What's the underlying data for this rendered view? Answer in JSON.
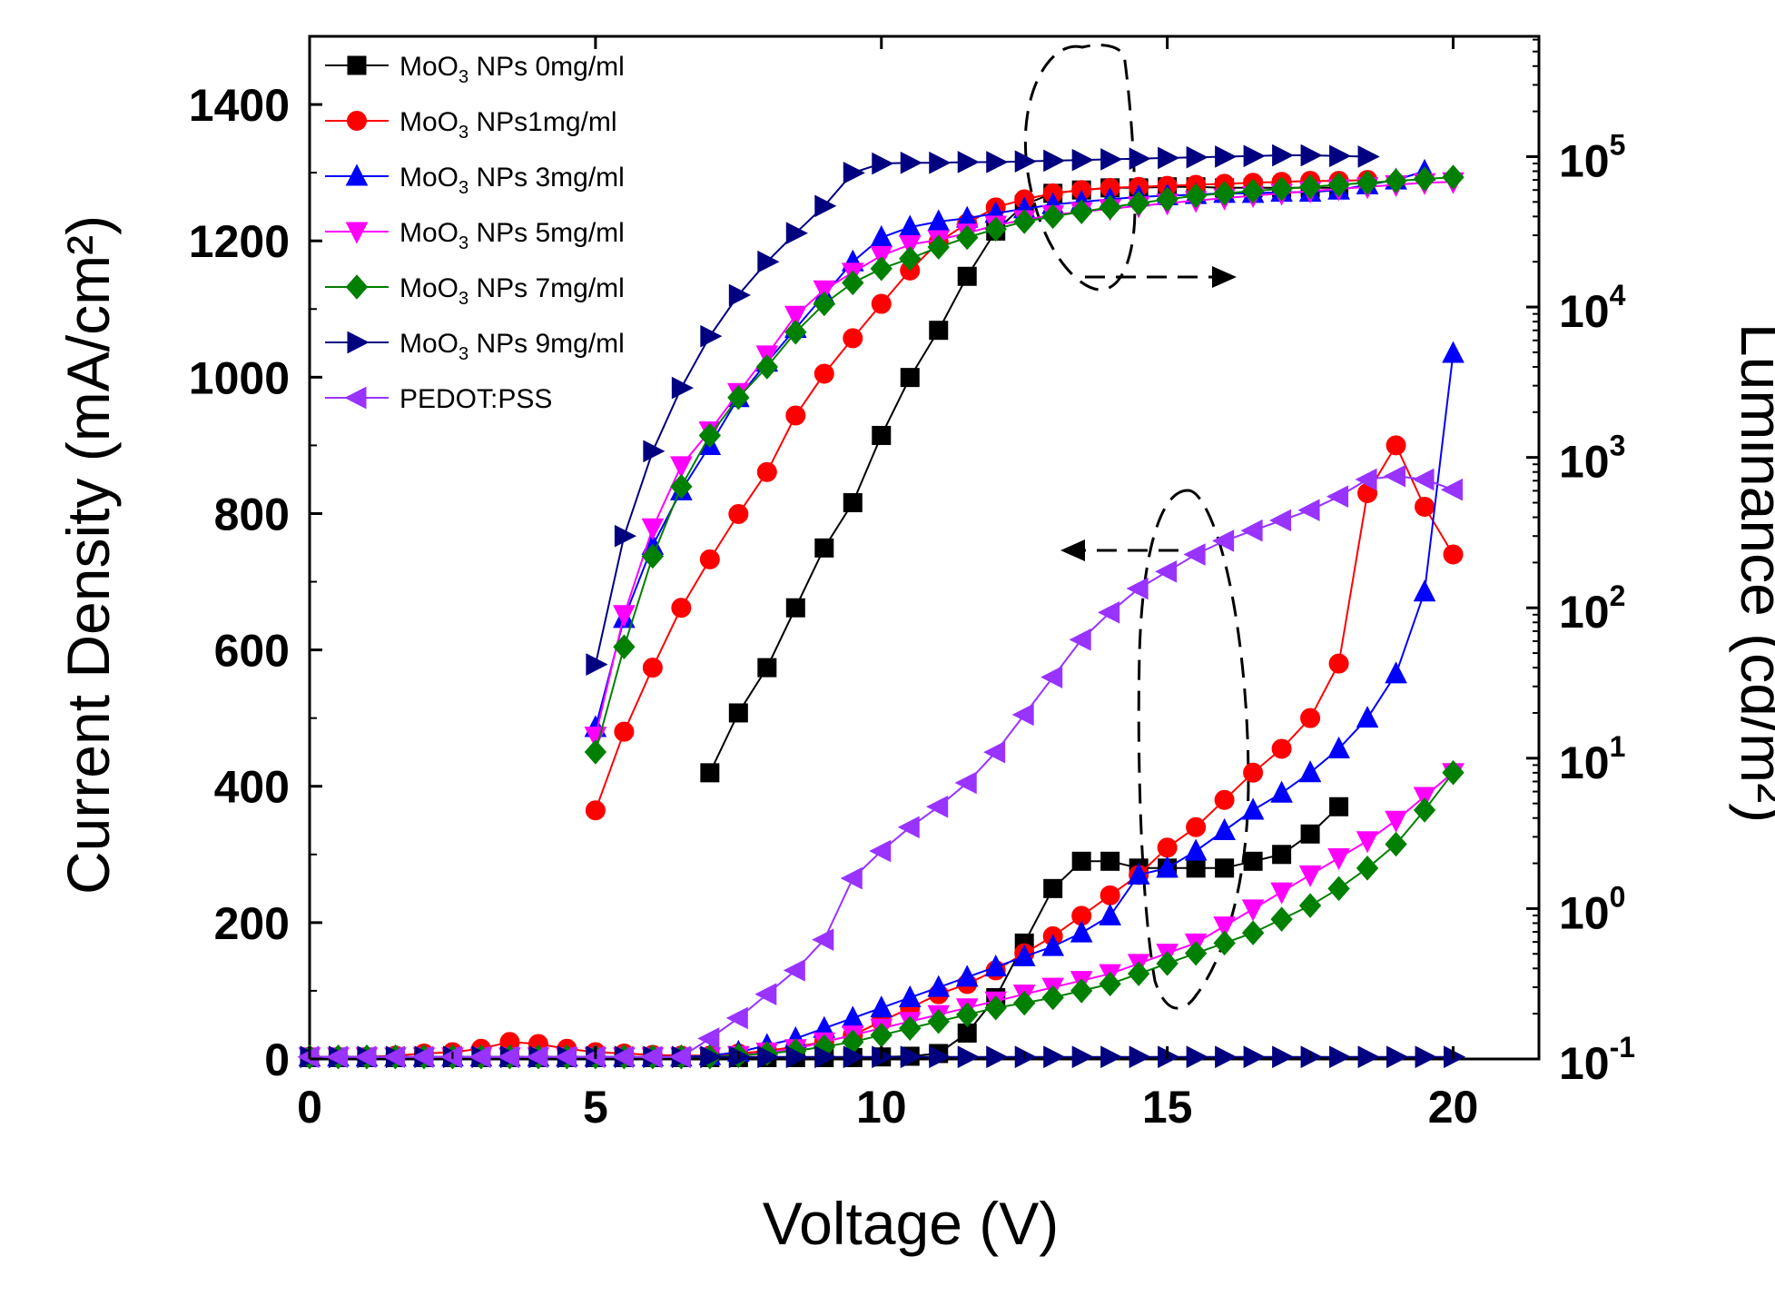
{
  "chart_data": {
    "type": "line",
    "title": "",
    "xlabel": "Voltage (V)",
    "ylabel_left": "Current Density (mA/cm²)",
    "ylabel_right": "Luminance (cd/m²)",
    "xlim": [
      0,
      21.5
    ],
    "ylim_left": [
      0,
      1500
    ],
    "ylim_right_log10": [
      -1,
      5.8
    ],
    "x_ticks": [
      "0",
      "5",
      "10",
      "15",
      "20"
    ],
    "y_left_ticks": [
      "0",
      "200",
      "400",
      "600",
      "800",
      "1000",
      "1200",
      "1400"
    ],
    "y_right_ticks": [
      {
        "base": "10",
        "exp": "-1"
      },
      {
        "base": "10",
        "exp": "0"
      },
      {
        "base": "10",
        "exp": "1"
      },
      {
        "base": "10",
        "exp": "2"
      },
      {
        "base": "10",
        "exp": "3"
      },
      {
        "base": "10",
        "exp": "4"
      },
      {
        "base": "10",
        "exp": "5"
      }
    ],
    "legend_position": "top-left",
    "annotations": [
      {
        "description": "dashed ellipse around upper curves with dashed arrow pointing right to luminance axis"
      },
      {
        "description": "dashed ellipse around lower curves with dashed arrow pointing left to current density axis"
      }
    ],
    "series": [
      {
        "name": "MoO3 NPs 0mg/ml",
        "legend": {
          "pre": "MoO",
          "sub": "3",
          "post": " NPs 0mg/ml"
        },
        "color": "#000000",
        "marker": "square",
        "current_density": {
          "x": [
            0,
            0.5,
            1,
            1.5,
            2,
            2.5,
            3,
            3.5,
            4,
            4.5,
            5,
            5.5,
            6,
            6.5,
            7,
            7.5,
            8,
            8.5,
            9,
            9.5,
            10,
            10.5,
            11,
            11.5,
            12,
            12.5,
            13,
            13.5,
            14,
            14.5,
            15,
            15.5,
            16,
            16.5,
            17,
            17.5,
            18
          ],
          "y": [
            2,
            2,
            2,
            2,
            2,
            2,
            2,
            2,
            2,
            2,
            2,
            2,
            2,
            2,
            2,
            2,
            2,
            2,
            2,
            2,
            3,
            4,
            8,
            38,
            90,
            170,
            250,
            290,
            290,
            280,
            280,
            280,
            280,
            290,
            300,
            330,
            370
          ]
        },
        "luminance": {
          "x": [
            7,
            7.5,
            8,
            8.5,
            9,
            9.5,
            10,
            10.5,
            11,
            11.5,
            12,
            12.5,
            13,
            13.5,
            14,
            14.5,
            15,
            15.5,
            16,
            16.5,
            17,
            17.5,
            18
          ],
          "y": [
            8,
            20,
            40,
            100,
            250,
            500,
            1400,
            3400,
            7000,
            16000,
            32000,
            48000,
            57000,
            60000,
            62000,
            62000,
            63000,
            63000,
            62000,
            62000,
            62000,
            62000,
            62000
          ]
        }
      },
      {
        "name": "MoO3 NPs1mg/ml",
        "legend": {
          "pre": "MoO",
          "sub": "3",
          "post": " NPs1mg/ml"
        },
        "color": "#ff0000",
        "marker": "circle",
        "current_density": {
          "x": [
            0,
            0.5,
            1,
            1.5,
            2,
            2.5,
            3,
            3.5,
            4,
            4.5,
            5,
            5.5,
            6,
            6.5,
            7,
            7.5,
            8,
            8.5,
            9,
            9.5,
            10,
            10.5,
            11,
            11.5,
            12,
            12.5,
            13,
            13.5,
            14,
            14.5,
            15,
            15.5,
            16,
            16.5,
            17,
            17.5,
            18,
            18.5,
            19,
            19.5,
            20
          ],
          "y": [
            3,
            3,
            3,
            5,
            8,
            10,
            15,
            25,
            22,
            15,
            10,
            8,
            6,
            5,
            5,
            8,
            12,
            18,
            25,
            35,
            55,
            75,
            95,
            110,
            130,
            155,
            180,
            210,
            240,
            270,
            310,
            340,
            380,
            420,
            455,
            500,
            580,
            830,
            900,
            810,
            740
          ]
        },
        "luminance": {
          "x": [
            5,
            5.5,
            6,
            6.5,
            7,
            7.5,
            8,
            8.5,
            9,
            9.5,
            10,
            10.5,
            11,
            11.5,
            12,
            12.5,
            13,
            13.5,
            14,
            14.5,
            15,
            15.5,
            16,
            16.5,
            17,
            17.5,
            18,
            18.5
          ],
          "y": [
            4.5,
            15,
            40,
            100,
            210,
            420,
            800,
            1900,
            3600,
            6200,
            10500,
            17500,
            27000,
            36000,
            46000,
            52000,
            57000,
            60000,
            62000,
            63000,
            64000,
            65000,
            66000,
            67000,
            68000,
            69000,
            69000,
            70000
          ]
        }
      },
      {
        "name": "MoO3 NPs 3mg/ml",
        "legend": {
          "pre": "MoO",
          "sub": "3",
          "post": " NPs 3mg/ml"
        },
        "color": "#0000ff",
        "marker": "triangle-up",
        "current_density": {
          "x": [
            0,
            0.5,
            1,
            1.5,
            2,
            2.5,
            3,
            3.5,
            4,
            4.5,
            5,
            5.5,
            6,
            6.5,
            7,
            7.5,
            8,
            8.5,
            9,
            9.5,
            10,
            10.5,
            11,
            11.5,
            12,
            12.5,
            13,
            13.5,
            14,
            14.5,
            15,
            15.5,
            16,
            16.5,
            17,
            17.5,
            18,
            18.5,
            19,
            19.5,
            20
          ],
          "y": [
            3,
            3,
            3,
            3,
            3,
            3,
            3,
            3,
            3,
            3,
            3,
            3,
            3,
            3,
            5,
            10,
            20,
            30,
            45,
            60,
            75,
            90,
            105,
            120,
            135,
            150,
            165,
            185,
            210,
            270,
            280,
            305,
            335,
            365,
            390,
            420,
            455,
            500,
            565,
            685,
            1035
          ]
        },
        "luminance": {
          "x": [
            5,
            5.5,
            6,
            6.5,
            7,
            7.5,
            8,
            8.5,
            9,
            9.5,
            10,
            10.5,
            11,
            11.5,
            12,
            12.5,
            13,
            13.5,
            14,
            14.5,
            15,
            15.5,
            16,
            16.5,
            17,
            17.5,
            18,
            18.5,
            19,
            19.5
          ],
          "y": [
            16,
            85,
            260,
            600,
            1200,
            2500,
            4300,
            7200,
            12000,
            20000,
            29000,
            34000,
            37000,
            39000,
            42000,
            45000,
            48000,
            50000,
            52000,
            54000,
            55000,
            56000,
            57000,
            57000,
            58000,
            58000,
            60000,
            65000,
            70000,
            80000
          ]
        }
      },
      {
        "name": "MoO3 NPs 5mg/ml",
        "legend": {
          "pre": "MoO",
          "sub": "3",
          "post": " NPs 5mg/ml"
        },
        "color": "#ff00ff",
        "marker": "triangle-down",
        "current_density": {
          "x": [
            0,
            0.5,
            1,
            1.5,
            2,
            2.5,
            3,
            3.5,
            4,
            4.5,
            5,
            5.5,
            6,
            6.5,
            7,
            7.5,
            8,
            8.5,
            9,
            9.5,
            10,
            10.5,
            11,
            11.5,
            12,
            12.5,
            13,
            13.5,
            14,
            14.5,
            15,
            15.5,
            16,
            16.5,
            17,
            17.5,
            18,
            18.5,
            19,
            19.5,
            20
          ],
          "y": [
            3,
            3,
            3,
            3,
            3,
            3,
            3,
            3,
            3,
            3,
            3,
            3,
            3,
            3,
            3,
            5,
            10,
            15,
            25,
            35,
            45,
            55,
            65,
            75,
            85,
            95,
            105,
            115,
            125,
            140,
            155,
            170,
            195,
            220,
            245,
            270,
            295,
            320,
            350,
            385,
            420
          ]
        },
        "luminance": {
          "x": [
            5,
            5.5,
            6,
            6.5,
            7,
            7.5,
            8,
            8.5,
            9,
            9.5,
            10,
            10.5,
            11,
            11.5,
            12,
            12.5,
            13,
            13.5,
            14,
            14.5,
            15,
            15.5,
            16,
            16.5,
            17,
            17.5,
            18,
            18.5,
            19,
            19.5,
            20
          ],
          "y": [
            14,
            90,
            340,
            880,
            1500,
            2700,
            4800,
            8800,
            13000,
            17000,
            22000,
            26000,
            28000,
            31000,
            35000,
            38000,
            41000,
            43000,
            45000,
            47000,
            49000,
            51000,
            53000,
            55000,
            57000,
            59000,
            61000,
            63000,
            65000,
            67000,
            68000
          ]
        }
      },
      {
        "name": "MoO3 NPs 7mg/ml",
        "legend": {
          "pre": "MoO",
          "sub": "3",
          "post": " NPs 7mg/ml"
        },
        "color": "#008000",
        "marker": "diamond",
        "current_density": {
          "x": [
            0,
            0.5,
            1,
            1.5,
            2,
            2.5,
            3,
            3.5,
            4,
            4.5,
            5,
            5.5,
            6,
            6.5,
            7,
            7.5,
            8,
            8.5,
            9,
            9.5,
            10,
            10.5,
            11,
            11.5,
            12,
            12.5,
            13,
            13.5,
            14,
            14.5,
            15,
            15.5,
            16,
            16.5,
            17,
            17.5,
            18,
            18.5,
            19,
            19.5,
            20
          ],
          "y": [
            3,
            3,
            3,
            3,
            3,
            3,
            3,
            3,
            3,
            3,
            3,
            3,
            3,
            3,
            3,
            5,
            8,
            12,
            18,
            25,
            35,
            45,
            55,
            65,
            75,
            82,
            90,
            100,
            110,
            125,
            140,
            155,
            170,
            185,
            205,
            225,
            250,
            280,
            315,
            365,
            420
          ]
        },
        "luminance": {
          "x": [
            5,
            5.5,
            6,
            6.5,
            7,
            7.5,
            8,
            8.5,
            9,
            9.5,
            10,
            10.5,
            11,
            11.5,
            12,
            12.5,
            13,
            13.5,
            14,
            14.5,
            15,
            15.5,
            16,
            16.5,
            17,
            17.5,
            18,
            18.5,
            19,
            19.5,
            20
          ],
          "y": [
            11,
            55,
            220,
            640,
            1400,
            2500,
            4000,
            6800,
            10500,
            14500,
            18000,
            21000,
            25000,
            29000,
            33000,
            37000,
            40000,
            43000,
            46000,
            49000,
            52000,
            55000,
            57000,
            59000,
            61000,
            63000,
            65000,
            67000,
            69000,
            71000,
            73000
          ]
        }
      },
      {
        "name": "MoO3 NPs 9mg/ml",
        "legend": {
          "pre": "MoO",
          "sub": "3",
          "post": " NPs 9mg/ml"
        },
        "color": "#000080",
        "marker": "triangle-right",
        "current_density": {
          "x": [
            0,
            0.5,
            1,
            1.5,
            2,
            2.5,
            3,
            3.5,
            4,
            4.5,
            5,
            5.5,
            6,
            6.5,
            7,
            7.5,
            8,
            8.5,
            9,
            9.5,
            10,
            10.5,
            11,
            11.5,
            12,
            12.5,
            13,
            13.5,
            14,
            14.5,
            15,
            15.5,
            16,
            16.5,
            17,
            17.5,
            18,
            18.5,
            19,
            19.5,
            20
          ],
          "y": [
            3,
            3,
            3,
            3,
            3,
            3,
            3,
            3,
            3,
            3,
            3,
            3,
            3,
            3,
            3,
            3,
            3,
            3,
            3,
            3,
            3,
            3,
            3,
            3,
            3,
            3,
            3,
            3,
            3,
            3,
            3,
            3,
            3,
            3,
            3,
            3,
            3,
            3,
            3,
            3,
            3
          ]
        },
        "luminance": {
          "x": [
            5,
            5.5,
            6,
            6.5,
            7,
            7.5,
            8,
            8.5,
            9,
            9.5,
            10,
            10.5,
            11,
            11.5,
            12,
            12.5,
            13,
            13.5,
            14,
            14.5,
            15,
            15.5,
            16,
            16.5,
            17,
            17.5,
            18,
            18.5
          ],
          "y": [
            42,
            300,
            1100,
            2900,
            6400,
            12000,
            20000,
            31000,
            47000,
            78000,
            90000,
            91000,
            91000,
            92000,
            92000,
            93000,
            94000,
            95000,
            96000,
            97000,
            98000,
            99000,
            100000,
            101000,
            102000,
            102000,
            101000,
            100000
          ]
        }
      },
      {
        "name": "PEDOT:PSS",
        "legend": {
          "pre": "PEDOT:PSS",
          "sub": "",
          "post": ""
        },
        "color": "#9933ff",
        "marker": "triangle-left",
        "current_density": {
          "x": [
            0,
            0.5,
            1,
            1.5,
            2,
            2.5,
            3,
            3.5,
            4,
            4.5,
            5,
            5.5,
            6,
            6.5,
            7,
            7.5,
            8,
            8.5,
            9,
            9.5,
            10,
            10.5,
            11,
            11.5,
            12,
            12.5,
            13,
            13.5,
            14,
            14.5,
            15,
            15.5,
            16,
            16.5,
            17,
            17.5,
            18,
            18.5,
            19,
            19.5,
            20
          ],
          "y": [
            3,
            3,
            3,
            3,
            3,
            3,
            3,
            3,
            3,
            3,
            3,
            3,
            3,
            3,
            30,
            60,
            95,
            130,
            175,
            265,
            305,
            340,
            370,
            405,
            450,
            505,
            560,
            615,
            655,
            690,
            715,
            740,
            760,
            775,
            790,
            805,
            825,
            850,
            855,
            850,
            835
          ]
        }
      }
    ]
  }
}
